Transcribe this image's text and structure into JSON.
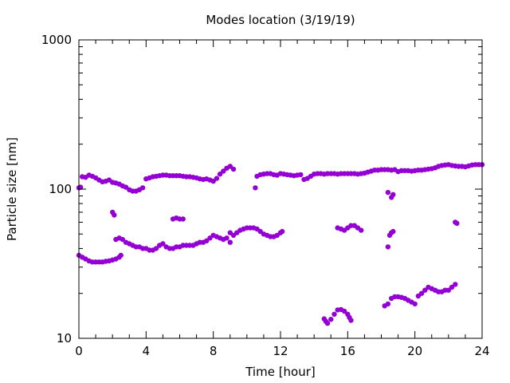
{
  "chart_data": {
    "type": "scatter",
    "title": "Modes location (3/19/19)",
    "xlabel": "Time [hour]",
    "ylabel": "Particle size [nm]",
    "xlim": [
      0,
      24
    ],
    "ylim": [
      10,
      1000
    ],
    "yscale": "log",
    "grid": false,
    "legend": "none",
    "marker_color": "#9400d3",
    "x_ticks": [
      {
        "value": 0,
        "label": "0"
      },
      {
        "value": 4,
        "label": "4"
      },
      {
        "value": 8,
        "label": "8"
      },
      {
        "value": 12,
        "label": "12"
      },
      {
        "value": 16,
        "label": "16"
      },
      {
        "value": 20,
        "label": "20"
      },
      {
        "value": 24,
        "label": "24"
      }
    ],
    "y_ticks": [
      {
        "value": 10,
        "label": "10"
      },
      {
        "value": 100,
        "label": "100"
      },
      {
        "value": 1000,
        "label": "1000"
      }
    ],
    "series": [
      {
        "points": [
          [
            0.0,
            102
          ],
          [
            0.1,
            103
          ],
          [
            0.2,
            121
          ],
          [
            0.4,
            120
          ],
          [
            0.6,
            124
          ],
          [
            0.8,
            122
          ],
          [
            1.0,
            119
          ],
          [
            1.2,
            115
          ],
          [
            1.4,
            112
          ],
          [
            1.6,
            113
          ],
          [
            1.8,
            115
          ],
          [
            2.0,
            111
          ],
          [
            2.2,
            110
          ],
          [
            2.4,
            108
          ],
          [
            2.6,
            105
          ],
          [
            2.8,
            103
          ],
          [
            3.0,
            99
          ],
          [
            3.2,
            97
          ],
          [
            3.4,
            97
          ],
          [
            3.6,
            99
          ],
          [
            3.8,
            102
          ],
          [
            4.0,
            117
          ],
          [
            4.2,
            119
          ],
          [
            4.4,
            121
          ],
          [
            4.6,
            122
          ],
          [
            4.8,
            123
          ],
          [
            5.0,
            124
          ],
          [
            5.2,
            124
          ],
          [
            5.4,
            123
          ],
          [
            5.6,
            123
          ],
          [
            5.8,
            123
          ],
          [
            6.0,
            123
          ],
          [
            6.2,
            122
          ],
          [
            6.4,
            121
          ],
          [
            6.6,
            121
          ],
          [
            6.8,
            120
          ],
          [
            7.0,
            119
          ],
          [
            7.2,
            117
          ],
          [
            7.4,
            116
          ],
          [
            7.6,
            117
          ],
          [
            7.8,
            115
          ],
          [
            8.0,
            113
          ],
          [
            8.2,
            118
          ],
          [
            8.4,
            126
          ],
          [
            8.6,
            132
          ],
          [
            8.8,
            138
          ],
          [
            9.0,
            142
          ],
          [
            9.2,
            136
          ],
          [
            10.5,
            102
          ],
          [
            10.6,
            122
          ],
          [
            10.8,
            125
          ],
          [
            11.0,
            126
          ],
          [
            11.2,
            127
          ],
          [
            11.4,
            127
          ],
          [
            11.6,
            125
          ],
          [
            11.8,
            124
          ],
          [
            12.0,
            127
          ],
          [
            12.2,
            126
          ],
          [
            12.4,
            125
          ],
          [
            12.6,
            124
          ],
          [
            12.8,
            123
          ],
          [
            13.0,
            124
          ],
          [
            13.2,
            125
          ],
          [
            13.4,
            116
          ],
          [
            13.6,
            118
          ],
          [
            13.8,
            122
          ],
          [
            14.0,
            126
          ],
          [
            14.2,
            127
          ],
          [
            14.4,
            127
          ],
          [
            14.6,
            126
          ],
          [
            14.8,
            127
          ],
          [
            15.0,
            127
          ],
          [
            15.2,
            127
          ],
          [
            15.4,
            126
          ],
          [
            15.6,
            127
          ],
          [
            15.8,
            127
          ],
          [
            16.0,
            127
          ],
          [
            16.2,
            127
          ],
          [
            16.4,
            127
          ],
          [
            16.6,
            126
          ],
          [
            16.8,
            127
          ],
          [
            17.0,
            128
          ],
          [
            17.2,
            130
          ],
          [
            17.4,
            132
          ],
          [
            17.6,
            134
          ],
          [
            17.8,
            134
          ],
          [
            18.0,
            135
          ],
          [
            18.2,
            135
          ],
          [
            18.4,
            135
          ],
          [
            18.6,
            134
          ],
          [
            18.8,
            135
          ],
          [
            19.0,
            131
          ],
          [
            19.2,
            133
          ],
          [
            19.4,
            133
          ],
          [
            19.6,
            133
          ],
          [
            19.8,
            132
          ],
          [
            20.0,
            133
          ],
          [
            20.2,
            134
          ],
          [
            20.4,
            134
          ],
          [
            20.6,
            135
          ],
          [
            20.8,
            136
          ],
          [
            21.0,
            137
          ],
          [
            21.2,
            139
          ],
          [
            21.4,
            142
          ],
          [
            21.6,
            144
          ],
          [
            21.8,
            145
          ],
          [
            22.0,
            146
          ],
          [
            22.2,
            144
          ],
          [
            22.4,
            143
          ],
          [
            22.6,
            142
          ],
          [
            22.8,
            142
          ],
          [
            23.0,
            141
          ],
          [
            23.2,
            143
          ],
          [
            23.4,
            145
          ],
          [
            23.6,
            146
          ],
          [
            23.8,
            146
          ],
          [
            24.0,
            146
          ],
          [
            18.4,
            95
          ],
          [
            18.6,
            88
          ],
          [
            18.7,
            92
          ],
          [
            2.0,
            70
          ],
          [
            2.1,
            67
          ],
          [
            5.6,
            63
          ],
          [
            5.8,
            64
          ],
          [
            6.0,
            63
          ],
          [
            6.2,
            63
          ],
          [
            22.4,
            60
          ],
          [
            22.5,
            59
          ],
          [
            0.0,
            36
          ],
          [
            0.2,
            35
          ],
          [
            0.4,
            34
          ],
          [
            0.6,
            33
          ],
          [
            0.8,
            32.5
          ],
          [
            1.0,
            32.5
          ],
          [
            1.2,
            32.5
          ],
          [
            1.4,
            32.5
          ],
          [
            1.6,
            32.8
          ],
          [
            1.8,
            33
          ],
          [
            2.0,
            33.5
          ],
          [
            2.2,
            34
          ],
          [
            2.4,
            35
          ],
          [
            2.5,
            36
          ],
          [
            2.2,
            46
          ],
          [
            2.4,
            47
          ],
          [
            2.6,
            46
          ],
          [
            2.8,
            44
          ],
          [
            3.0,
            43
          ],
          [
            3.2,
            42
          ],
          [
            3.4,
            41
          ],
          [
            3.6,
            41
          ],
          [
            3.8,
            40
          ],
          [
            4.0,
            40
          ],
          [
            4.2,
            39
          ],
          [
            4.4,
            39
          ],
          [
            4.6,
            40
          ],
          [
            4.8,
            42
          ],
          [
            5.0,
            43
          ],
          [
            5.2,
            41
          ],
          [
            5.4,
            40
          ],
          [
            5.6,
            40
          ],
          [
            5.8,
            41
          ],
          [
            6.0,
            41
          ],
          [
            6.2,
            42
          ],
          [
            6.4,
            42
          ],
          [
            6.6,
            42
          ],
          [
            6.8,
            42
          ],
          [
            7.0,
            43
          ],
          [
            7.2,
            44
          ],
          [
            7.4,
            44
          ],
          [
            7.6,
            45
          ],
          [
            7.8,
            47
          ],
          [
            8.0,
            49
          ],
          [
            8.2,
            48
          ],
          [
            8.4,
            47
          ],
          [
            8.6,
            46
          ],
          [
            8.8,
            47
          ],
          [
            9.0,
            44
          ],
          [
            9.2,
            49
          ],
          [
            9.4,
            51
          ],
          [
            9.6,
            53
          ],
          [
            9.8,
            54
          ],
          [
            10.0,
            55
          ],
          [
            10.2,
            55
          ],
          [
            10.4,
            55
          ],
          [
            10.6,
            54
          ],
          [
            10.8,
            52
          ],
          [
            11.0,
            50
          ],
          [
            11.2,
            49
          ],
          [
            11.4,
            48
          ],
          [
            11.6,
            48
          ],
          [
            11.8,
            49
          ],
          [
            12.0,
            51
          ],
          [
            12.1,
            52
          ],
          [
            9.0,
            51
          ],
          [
            15.4,
            55
          ],
          [
            15.6,
            54
          ],
          [
            15.8,
            53
          ],
          [
            16.0,
            55
          ],
          [
            16.2,
            57
          ],
          [
            16.4,
            57
          ],
          [
            16.6,
            55
          ],
          [
            16.8,
            53
          ],
          [
            18.4,
            41
          ],
          [
            18.5,
            49
          ],
          [
            18.6,
            51
          ],
          [
            18.7,
            52
          ],
          [
            14.6,
            13.5
          ],
          [
            14.7,
            13.0
          ],
          [
            14.8,
            12.6
          ],
          [
            15.0,
            13.4
          ],
          [
            15.2,
            14.5
          ],
          [
            15.4,
            15.5
          ],
          [
            15.6,
            15.6
          ],
          [
            15.8,
            15.2
          ],
          [
            16.0,
            14.5
          ],
          [
            16.1,
            13.8
          ],
          [
            16.2,
            13.2
          ],
          [
            18.2,
            16.5
          ],
          [
            18.4,
            17
          ],
          [
            18.6,
            18.5
          ],
          [
            18.8,
            19
          ],
          [
            19.0,
            19
          ],
          [
            19.2,
            18.8
          ],
          [
            19.4,
            18.5
          ],
          [
            19.6,
            18
          ],
          [
            19.8,
            17.5
          ],
          [
            20.0,
            17
          ],
          [
            20.2,
            19.2
          ],
          [
            20.4,
            20
          ],
          [
            20.6,
            21
          ],
          [
            20.8,
            22
          ],
          [
            21.0,
            21.5
          ],
          [
            21.2,
            21
          ],
          [
            21.4,
            20.5
          ],
          [
            21.6,
            20.5
          ],
          [
            21.8,
            21
          ],
          [
            22.0,
            21
          ],
          [
            22.2,
            22
          ],
          [
            22.4,
            23
          ]
        ]
      }
    ]
  }
}
